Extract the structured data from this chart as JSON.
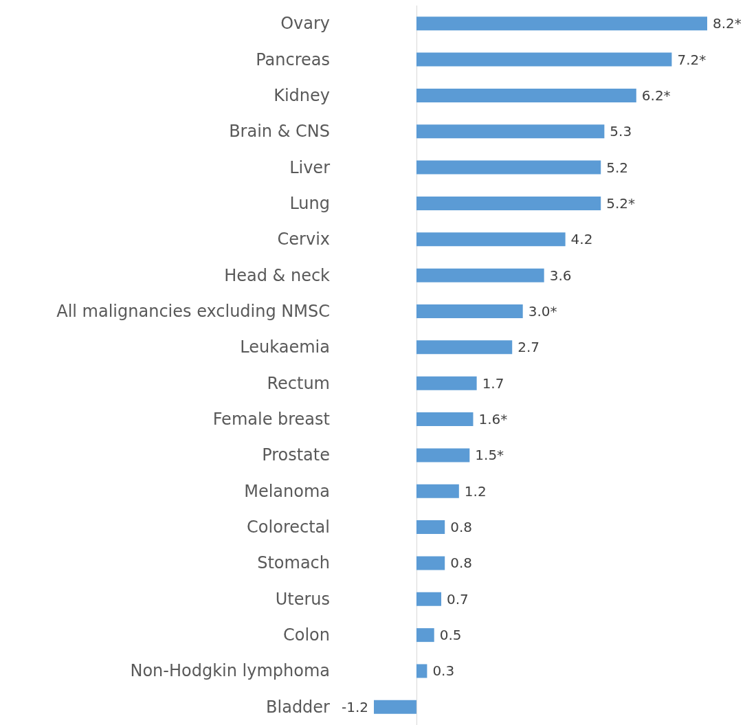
{
  "chart_data": {
    "type": "bar",
    "orientation": "horizontal",
    "color": "#5b9bd5",
    "categories": [
      "Ovary",
      "Pancreas",
      "Kidney",
      "Brain & CNS",
      "Liver",
      "Lung",
      "Cervix",
      "Head & neck",
      "All malignancies excluding NMSC",
      "Leukaemia",
      "Rectum",
      "Female breast",
      "Prostate",
      "Melanoma",
      "Colorectal",
      "Stomach",
      "Uterus",
      "Colon",
      "Non-Hodgkin lymphoma",
      "Bladder"
    ],
    "values": [
      8.2,
      7.2,
      6.2,
      5.3,
      5.2,
      5.2,
      4.2,
      3.6,
      3.0,
      2.7,
      1.7,
      1.6,
      1.5,
      1.2,
      0.8,
      0.8,
      0.7,
      0.5,
      0.3,
      -1.2
    ],
    "value_labels": [
      "8.2*",
      "7.2*",
      "6.2*",
      "5.3",
      "5.2",
      "5.2*",
      "4.2",
      "3.6",
      "3.0*",
      "2.7",
      "1.7",
      "1.6*",
      "1.5*",
      "1.2",
      "0.8",
      "0.8",
      "0.7",
      "0.5",
      "0.3",
      "-1.2"
    ]
  }
}
